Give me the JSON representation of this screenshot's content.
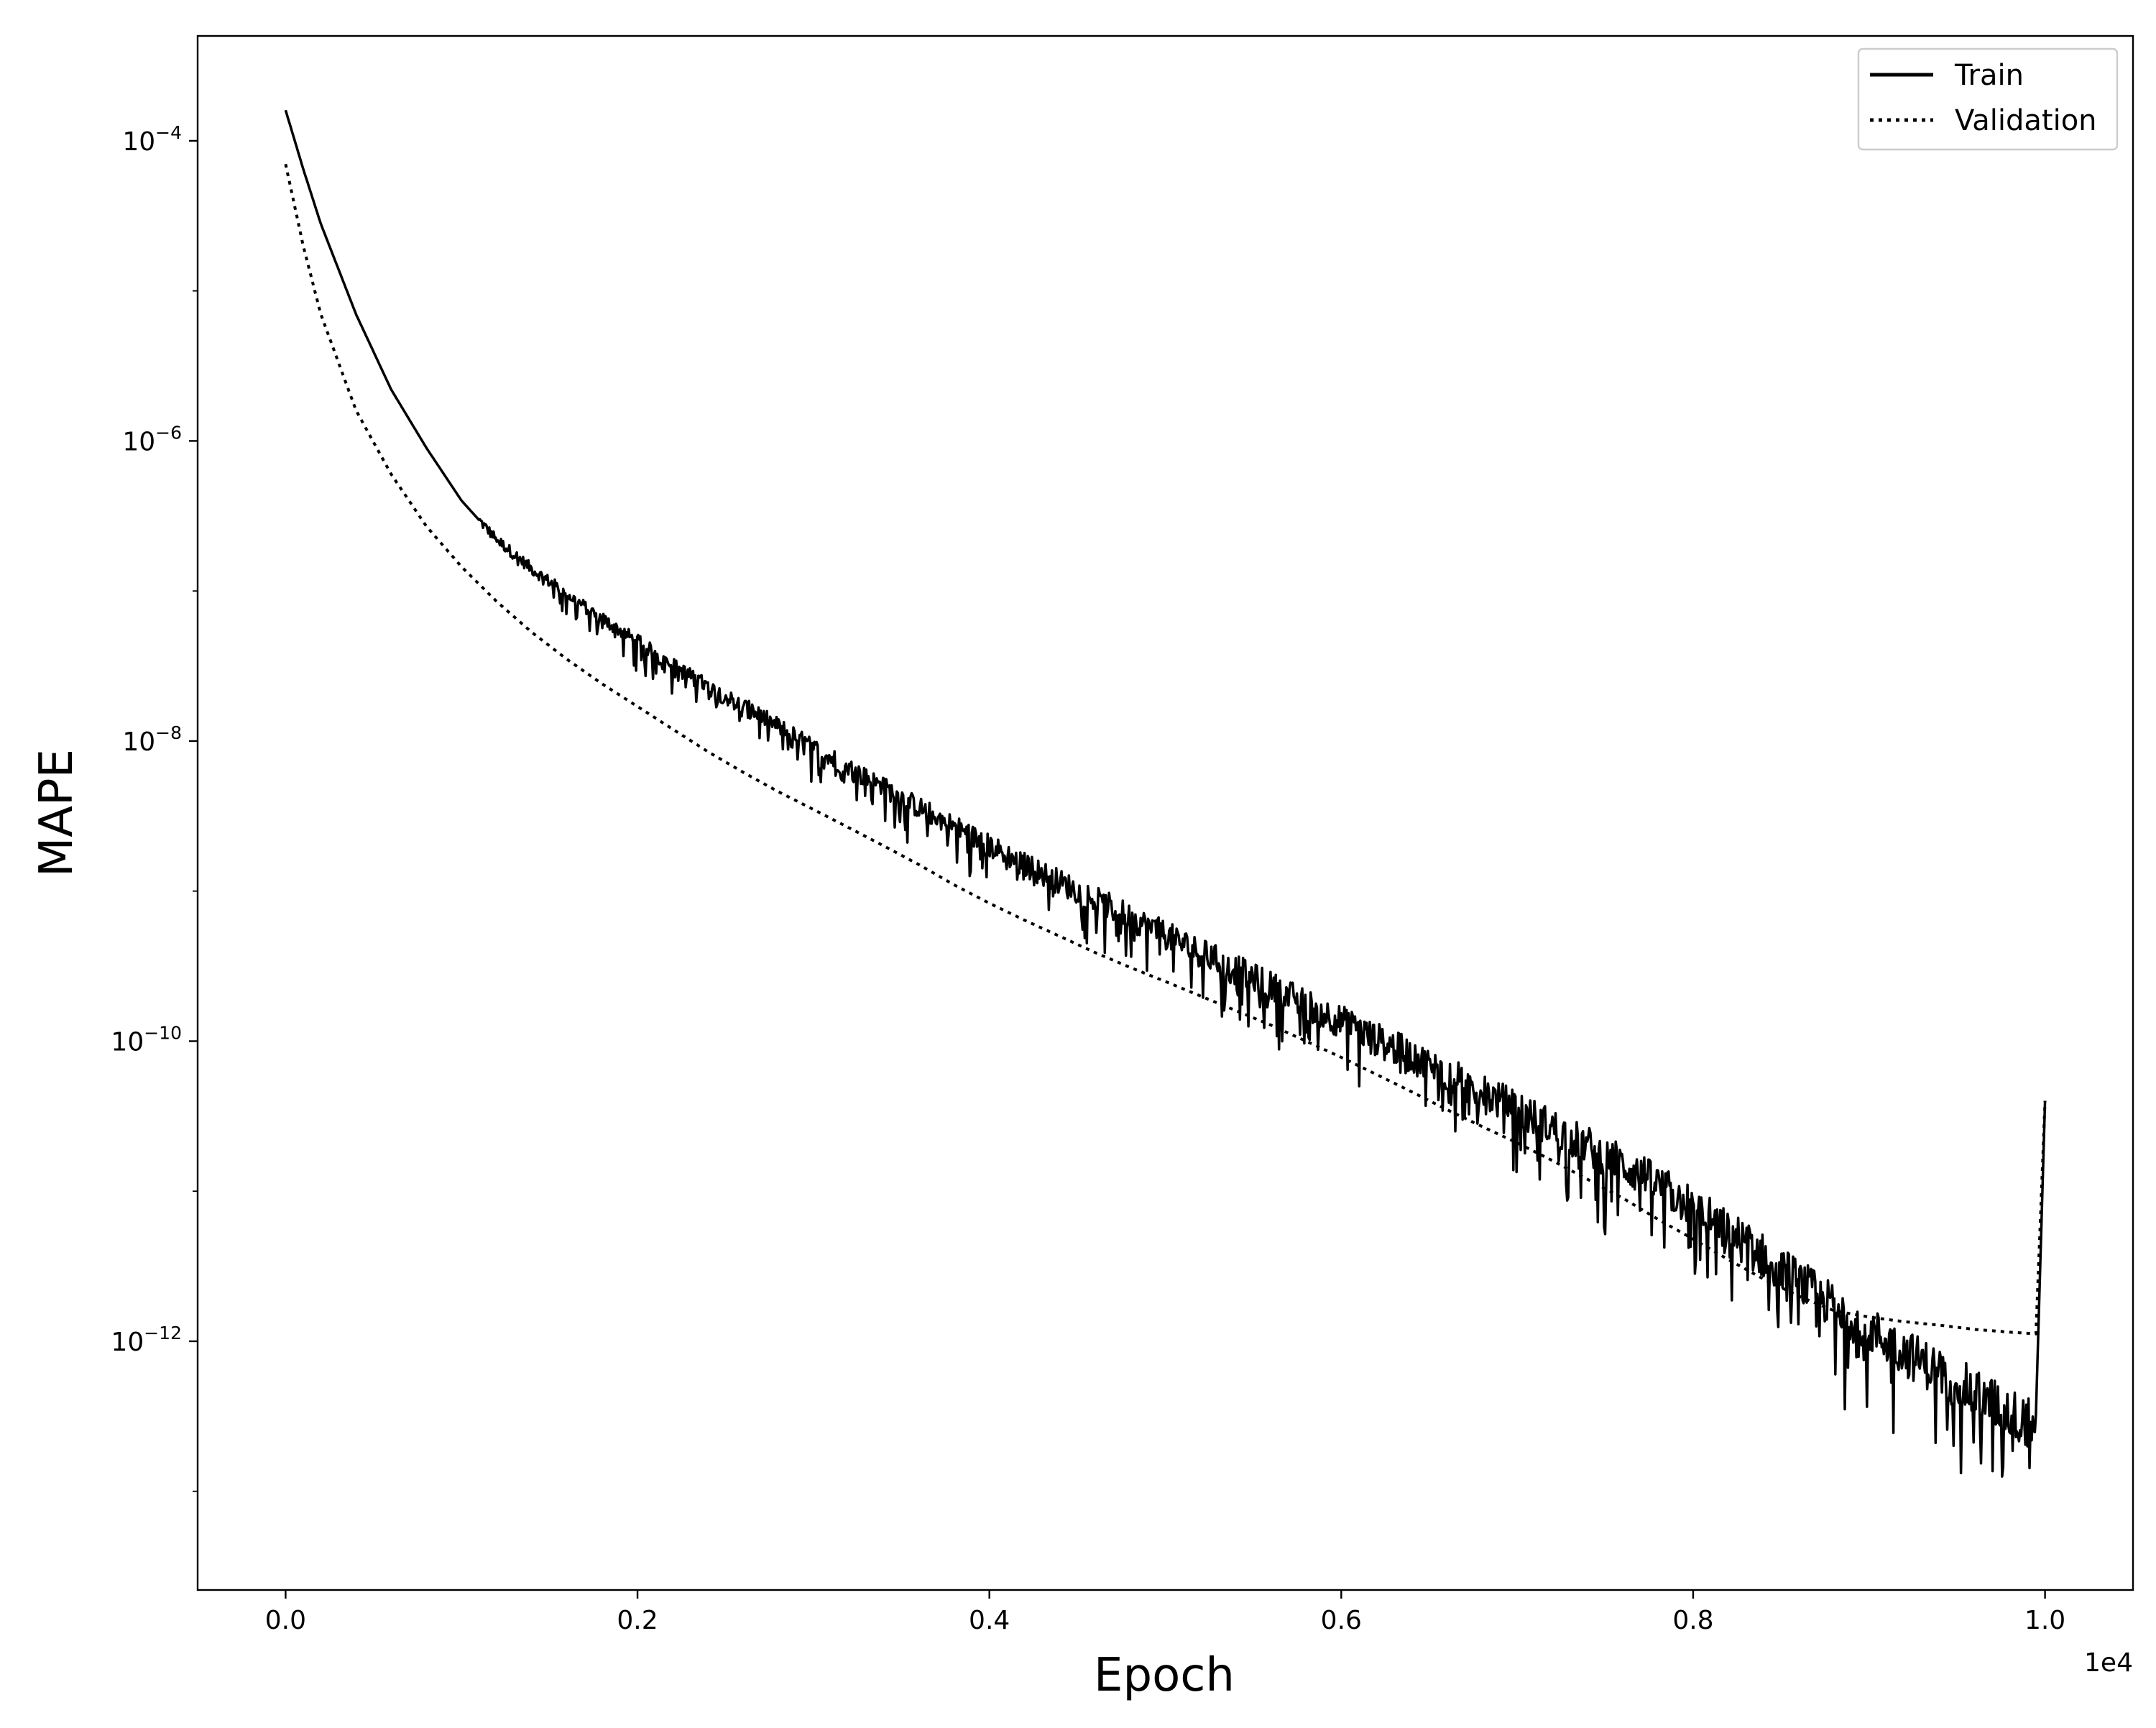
{
  "chart_data": {
    "type": "line",
    "title": "",
    "xlabel": "Epoch",
    "ylabel": "MAPE",
    "x_offset_text": "1e4",
    "xscale": "linear",
    "yscale": "log",
    "xlim": [
      -500,
      10500
    ],
    "ylim": [
      2.2e-14,
      0.0005
    ],
    "x_ticks": [
      0,
      2000,
      4000,
      6000,
      8000,
      10000
    ],
    "x_tick_labels": [
      "0.0",
      "0.2",
      "0.4",
      "0.6",
      "0.8",
      "1.0"
    ],
    "y_ticks": [
      0.0001,
      1e-06,
      1e-08,
      1e-10,
      1e-12
    ],
    "y_tick_labels": [
      {
        "base": "10",
        "exp": "−4"
      },
      {
        "base": "10",
        "exp": "−6"
      },
      {
        "base": "10",
        "exp": "−8"
      },
      {
        "base": "10",
        "exp": "−10"
      },
      {
        "base": "10",
        "exp": "−12"
      }
    ],
    "grid": false,
    "legend_position": "top-right",
    "series": [
      {
        "name": "Train",
        "style": "solid",
        "color": "#000000",
        "x": [
          0,
          100,
          200,
          400,
          600,
          800,
          1000,
          1200,
          1400,
          1600,
          1800,
          2000,
          2200,
          2400,
          2600,
          2800,
          3000,
          3200,
          3400,
          3600,
          3800,
          4000,
          4200,
          4400,
          4600,
          4800,
          5000,
          5200,
          5400,
          5600,
          5800,
          6000,
          6200,
          6400,
          6600,
          6800,
          7000,
          7200,
          7400,
          7600,
          7800,
          8000,
          8200,
          8400,
          8600,
          8800,
          9000,
          9200,
          9400,
          9600,
          9800,
          9950,
          10000
        ],
        "y": [
          0.00016,
          6.5e-05,
          2.8e-05,
          7e-06,
          2.2e-06,
          9e-07,
          4e-07,
          2.2e-07,
          1.4e-07,
          9.5e-08,
          6.5e-08,
          4.6e-08,
          3.2e-08,
          2.3e-08,
          1.7e-08,
          1.25e-08,
          9e-09,
          6.6e-09,
          4.9e-09,
          3.6e-09,
          2.7e-09,
          2e-09,
          1.5e-09,
          1.15e-09,
          8.8e-10,
          6.7e-10,
          5.1e-10,
          3.9e-10,
          3e-10,
          2.3e-10,
          1.75e-10,
          1.35e-10,
          1.03e-10,
          7.9e-11,
          6e-11,
          4.6e-11,
          3.5e-11,
          2.65e-11,
          2e-11,
          1.5e-11,
          1.1e-11,
          7.8e-12,
          5.4e-12,
          3.7e-12,
          2.5e-12,
          1.7e-12,
          1.2e-12,
          8.5e-13,
          6.2e-13,
          4.5e-13,
          3.3e-13,
          2.7e-13,
          4e-11
        ]
      },
      {
        "name": "Validation",
        "style": "dotted",
        "color": "#000000",
        "x": [
          0,
          100,
          200,
          400,
          600,
          800,
          1000,
          1200,
          1400,
          1600,
          1800,
          2000,
          2200,
          2400,
          2600,
          2800,
          3000,
          3200,
          3400,
          3600,
          3800,
          4000,
          4200,
          4400,
          4600,
          4800,
          5000,
          5200,
          5400,
          5600,
          5800,
          6000,
          6200,
          6400,
          6600,
          6800,
          7000,
          7200,
          7400,
          7600,
          7800,
          8000,
          8200,
          8400,
          8600,
          8800,
          9000,
          9200,
          9400,
          9600,
          9800,
          9950,
          10000
        ],
        "y": [
          7e-05,
          2e-05,
          7e-06,
          1.6e-06,
          6e-07,
          2.7e-07,
          1.45e-07,
          8.5e-08,
          5.3e-08,
          3.5e-08,
          2.4e-08,
          1.7e-08,
          1.2e-08,
          8.5e-09,
          6.2e-09,
          4.6e-09,
          3.5e-09,
          2.65e-09,
          2e-09,
          1.5e-09,
          1.1e-09,
          8.3e-10,
          6.4e-10,
          5e-10,
          3.9e-10,
          3.1e-10,
          2.5e-10,
          2e-10,
          1.6e-10,
          1.28e-10,
          1e-10,
          7.8e-11,
          6e-11,
          4.6e-11,
          3.5e-11,
          2.7e-11,
          2.1e-11,
          1.6e-11,
          1.2e-11,
          9e-12,
          6.5e-12,
          4.8e-12,
          3.5e-12,
          2.6e-12,
          2e-12,
          1.6e-12,
          1.45e-12,
          1.35e-12,
          1.28e-12,
          1.2e-12,
          1.15e-12,
          1.12e-12,
          4e-11
        ]
      }
    ]
  }
}
